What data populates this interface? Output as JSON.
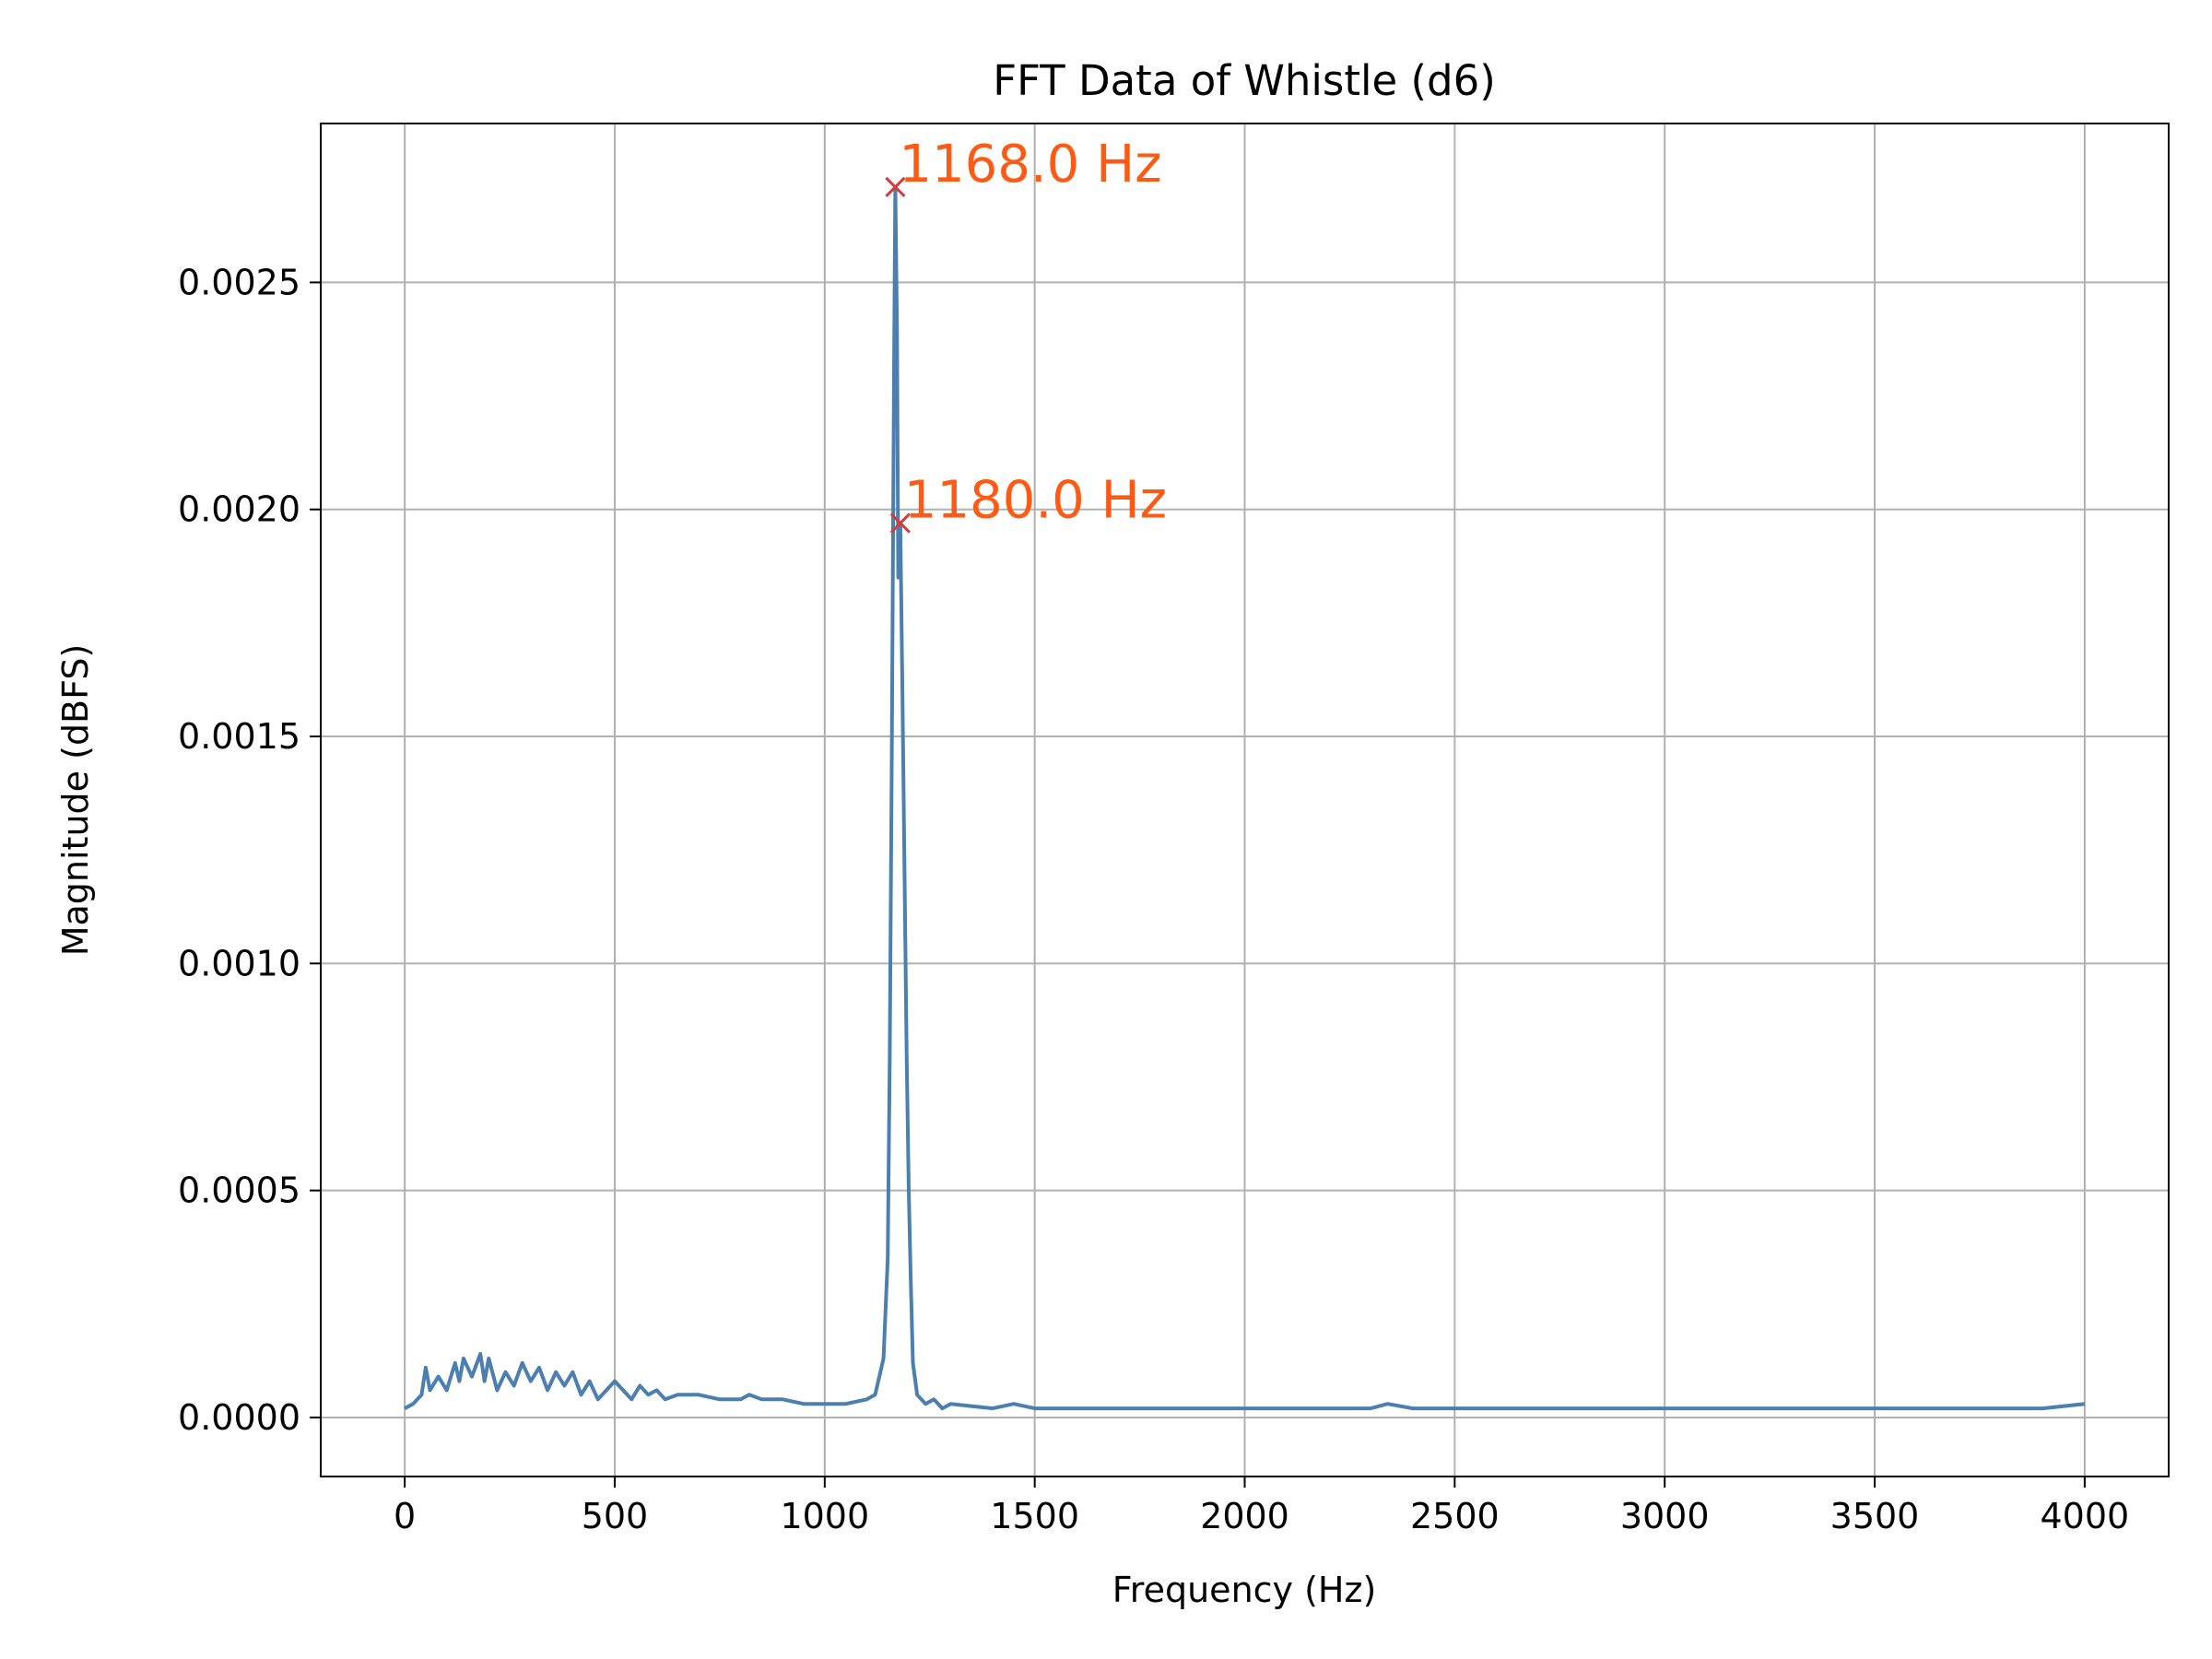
{
  "chart_data": {
    "type": "line",
    "title": "FFT Data of Whistle (d6)",
    "xlabel": "Frequency (Hz)",
    "ylabel": "Magnitude (dBFS)",
    "xlim": [
      -200,
      4200
    ],
    "ylim": [
      -0.00013,
      0.00285
    ],
    "xticks": [
      0,
      500,
      1000,
      1500,
      2000,
      2500,
      3000,
      3500,
      4000
    ],
    "xtick_labels": [
      "0",
      "500",
      "1000",
      "1500",
      "2000",
      "2500",
      "3000",
      "3500",
      "4000"
    ],
    "yticks": [
      0,
      0.0005,
      0.001,
      0.0015,
      0.002,
      0.0025
    ],
    "ytick_labels": [
      "0.0000",
      "0.0005",
      "0.0010",
      "0.0015",
      "0.0020",
      "0.0025"
    ],
    "grid": true,
    "line_color": "#4a7fb0",
    "marker_color": "#d63a3a",
    "annotation_color": "#ff5a14",
    "series": [
      {
        "x": [
          0,
          20,
          40,
          50,
          60,
          80,
          100,
          120,
          130,
          140,
          160,
          180,
          190,
          200,
          220,
          240,
          260,
          280,
          300,
          320,
          340,
          360,
          380,
          400,
          420,
          440,
          460,
          480,
          500,
          520,
          540,
          560,
          580,
          600,
          620,
          650,
          700,
          750,
          800,
          820,
          850,
          900,
          950,
          1000,
          1050,
          1100,
          1120,
          1130,
          1140,
          1150,
          1155,
          1160,
          1165,
          1168,
          1172,
          1175,
          1180,
          1185,
          1190,
          1195,
          1200,
          1205,
          1210,
          1220,
          1240,
          1260,
          1280,
          1300,
          1400,
          1450,
          1500,
          1600,
          1700,
          1800,
          1900,
          2000,
          2100,
          2200,
          2300,
          2340,
          2400,
          2500,
          2600,
          2700,
          2800,
          2900,
          3000,
          3100,
          3200,
          3300,
          3400,
          3500,
          3600,
          3700,
          3800,
          3900,
          4000
        ],
        "y": [
          2e-05,
          3e-05,
          5e-05,
          0.00011,
          6e-05,
          9e-05,
          6e-05,
          0.00012,
          8e-05,
          0.00013,
          9e-05,
          0.00014,
          8e-05,
          0.00013,
          6e-05,
          0.0001,
          7e-05,
          0.00012,
          8e-05,
          0.00011,
          6e-05,
          0.0001,
          7e-05,
          0.0001,
          5e-05,
          8e-05,
          4e-05,
          6e-05,
          8e-05,
          6e-05,
          4e-05,
          7e-05,
          5e-05,
          6e-05,
          4e-05,
          5e-05,
          5e-05,
          4e-05,
          4e-05,
          5e-05,
          4e-05,
          4e-05,
          3e-05,
          3e-05,
          3e-05,
          4e-05,
          5e-05,
          9e-05,
          0.00013,
          0.00035,
          0.0008,
          0.0015,
          0.0023,
          0.00271,
          0.0024,
          0.00185,
          0.00197,
          0.0016,
          0.0012,
          0.0008,
          0.0005,
          0.0003,
          0.00012,
          5e-05,
          3e-05,
          4e-05,
          2e-05,
          3e-05,
          2e-05,
          3e-05,
          2e-05,
          2e-05,
          2e-05,
          2e-05,
          2e-05,
          2e-05,
          2e-05,
          2e-05,
          2e-05,
          3e-05,
          2e-05,
          2e-05,
          2e-05,
          2e-05,
          2e-05,
          2e-05,
          2e-05,
          2e-05,
          2e-05,
          2e-05,
          2e-05,
          2e-05,
          2e-05,
          2e-05,
          2e-05,
          2e-05,
          3e-05
        ]
      }
    ],
    "peaks": [
      {
        "x": 1168,
        "y": 0.00271,
        "label": "1168.0 Hz"
      },
      {
        "x": 1180,
        "y": 0.00197,
        "label": "1180.0 Hz"
      }
    ]
  }
}
